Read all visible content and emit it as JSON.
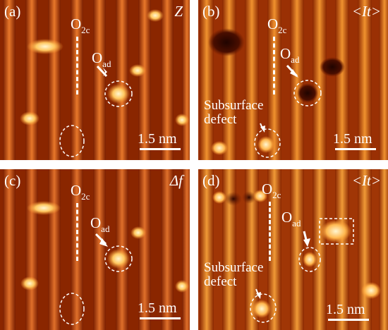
{
  "colors": {
    "stripe_dark": "#7a1e00",
    "stripe_mid": "#c84a08",
    "stripe_bright": "#f08a2a",
    "spot": "#fff2c0",
    "annotation": "#ffffff"
  },
  "panels": [
    {
      "id": "a",
      "label": "(a)",
      "channel": "Z",
      "o2c_main": "O",
      "o2c_sub": "2c",
      "oad_main": "O",
      "oad_sub": "ad",
      "scalebar": "1.5 nm"
    },
    {
      "id": "b",
      "label": "(b)",
      "channel": "<It>",
      "o2c_main": "O",
      "o2c_sub": "2c",
      "oad_main": "O",
      "oad_sub": "ad",
      "defect_line1": "Subsurface",
      "defect_line2": "defect",
      "scalebar": "1.5 nm"
    },
    {
      "id": "c",
      "label": "(c)",
      "channel": "Δf",
      "o2c_main": "O",
      "o2c_sub": "2c",
      "oad_main": "O",
      "oad_sub": "ad",
      "scalebar": "1.5 nm"
    },
    {
      "id": "d",
      "label": "(d)",
      "channel": "<It>",
      "o2c_main": "O",
      "o2c_sub": "2c",
      "oad_main": "O",
      "oad_sub": "ad",
      "defect_line1": "Subsurface",
      "defect_line2": "defect",
      "scalebar": "1.5 nm"
    }
  ]
}
